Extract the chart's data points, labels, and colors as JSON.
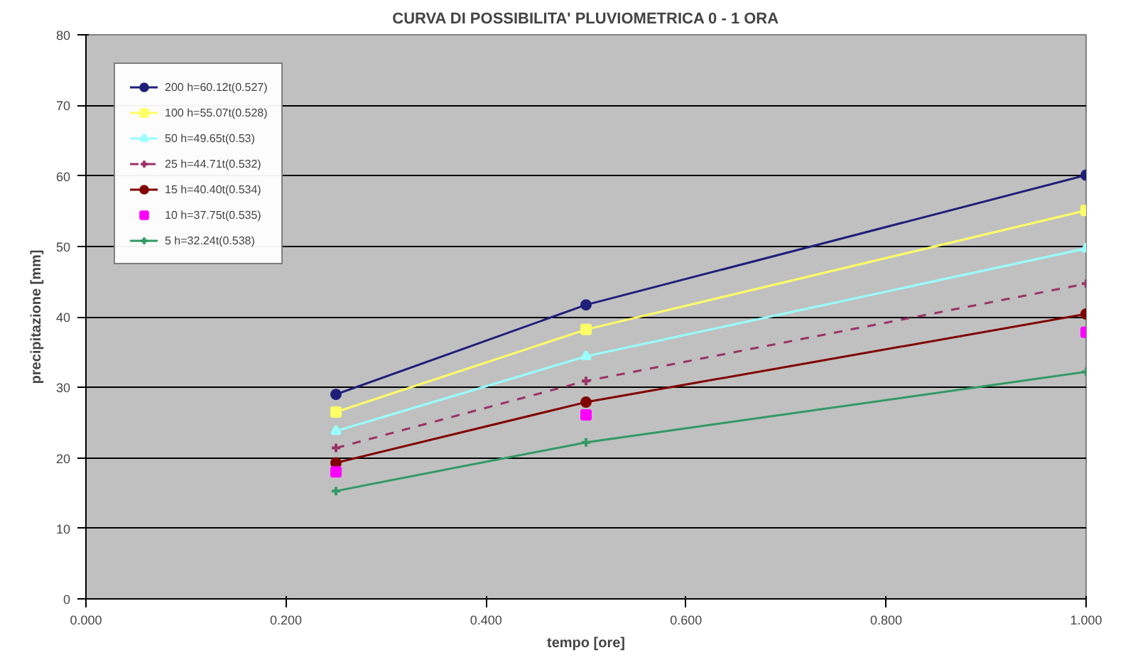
{
  "chart_data": {
    "type": "line",
    "title": "CURVA DI POSSIBILITA' PLUVIOMETRICA 0 - 1 ORA",
    "xlabel": "tempo [ore]",
    "ylabel": "precipitazione [mm]",
    "x": [
      0.25,
      0.5,
      1.0
    ],
    "xlim": [
      0,
      1
    ],
    "xticks": [
      {
        "value": 0,
        "label": "0.000"
      },
      {
        "value": 0.2,
        "label": "0.200"
      },
      {
        "value": 0.4,
        "label": "0.400"
      },
      {
        "value": 0.6,
        "label": "0.600"
      },
      {
        "value": 0.8,
        "label": "0.800"
      },
      {
        "value": 1,
        "label": "1.000"
      }
    ],
    "ylim": [
      0,
      80
    ],
    "yticks": [
      0,
      10,
      20,
      30,
      40,
      50,
      60,
      70,
      80
    ],
    "grid": "y",
    "legend": "top left",
    "series": [
      {
        "name": "200 h=60.12t(0.527)",
        "color": "#1f1f7a",
        "marker": "circle",
        "line_style": "solid",
        "values": [
          29.0,
          41.7,
          60.1
        ]
      },
      {
        "name": "100 h=55.07t(0.528)",
        "color": "#ffff66",
        "marker": "square",
        "line_style": "solid",
        "values": [
          26.5,
          38.2,
          55.1
        ]
      },
      {
        "name": "50 h=49.65t(0.53)",
        "color": "#99ffff",
        "marker": "triangle",
        "line_style": "solid",
        "values": [
          23.8,
          34.4,
          49.7
        ]
      },
      {
        "name": "25 h=44.71t(0.532)",
        "color": "#993366",
        "marker": "cross",
        "line_style": "dashed",
        "values": [
          21.4,
          30.9,
          44.7
        ]
      },
      {
        "name": "15 h=40.40t(0.534)",
        "color": "#800000",
        "marker": "circle",
        "line_style": "solid",
        "values": [
          19.3,
          27.9,
          40.4
        ]
      },
      {
        "name": "10 h=37.75t(0.535)",
        "type": "scatter",
        "color": "#ff00ff",
        "marker": "square",
        "values": [
          18.0,
          26.1,
          37.8
        ]
      },
      {
        "name": "5 h=32.24t(0.538)",
        "color": "#339966",
        "marker": "cross",
        "line_style": "solid",
        "values": [
          15.3,
          22.2,
          32.2
        ]
      }
    ]
  }
}
